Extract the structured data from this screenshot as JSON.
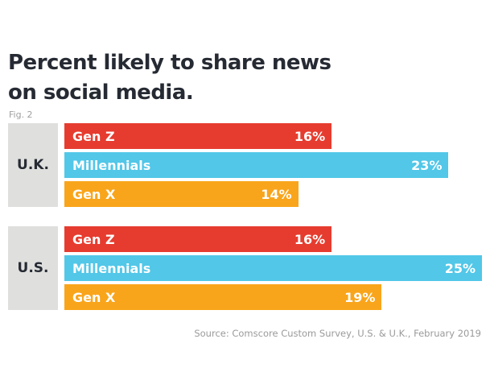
{
  "title": "Percent likely to share news on social media.",
  "figure_label": "Fig. 2",
  "source": "Source: Comscore Custom Survey, U.S. & U.K., February 2019",
  "chart_data": {
    "type": "bar",
    "orientation": "horizontal",
    "title": "Percent likely to share news on social media.",
    "groups": [
      "U.K.",
      "U.S."
    ],
    "categories": [
      "Gen Z",
      "Millennials",
      "Gen X"
    ],
    "unit": "%",
    "xlim": [
      0,
      25
    ],
    "grid": false,
    "colors": {
      "Gen Z": "#e63c2f",
      "Millennials": "#52c7e8",
      "Gen X": "#f9a51b"
    },
    "series": [
      {
        "group": "U.K.",
        "values": [
          16,
          23,
          14
        ],
        "labels": [
          "16%",
          "23%",
          "14%"
        ]
      },
      {
        "group": "U.S.",
        "values": [
          16,
          25,
          19
        ],
        "labels": [
          "16%",
          "25%",
          "19%"
        ]
      }
    ]
  }
}
